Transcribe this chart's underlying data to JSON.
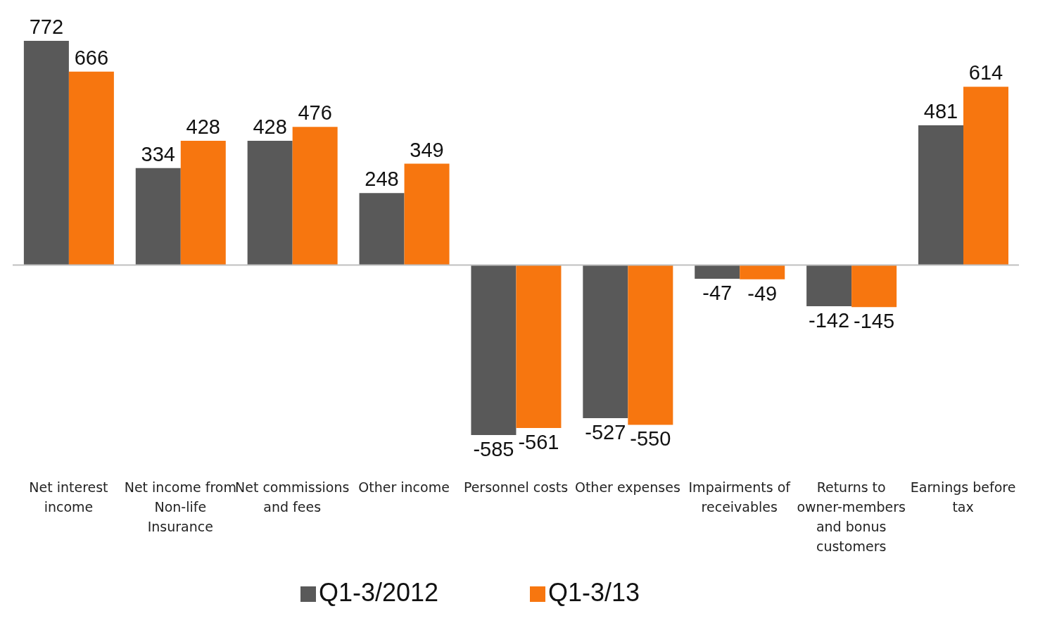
{
  "chart_data": {
    "type": "bar",
    "categories": [
      "Net interest income",
      "Net income from Non-life Insurance",
      "Net commissions and fees",
      "Other income",
      "Personnel costs",
      "Other expenses",
      "Impairments of receivables",
      "Returns to owner-members and bonus customers",
      "Earnings before tax"
    ],
    "series": [
      {
        "name": "Q1-3/2012",
        "color": "#595959",
        "values": [
          772,
          334,
          428,
          248,
          -585,
          -527,
          -47,
          -142,
          481
        ]
      },
      {
        "name": "Q1-3/13",
        "color": "#f7760f",
        "values": [
          666,
          428,
          476,
          349,
          -561,
          -550,
          -49,
          -145,
          614
        ]
      }
    ],
    "data_labels": true,
    "ref_lines": [
      {
        "axis": "y",
        "value": 0,
        "color": "#bfbfbf"
      }
    ],
    "legend": "bottom",
    "grid": false
  }
}
